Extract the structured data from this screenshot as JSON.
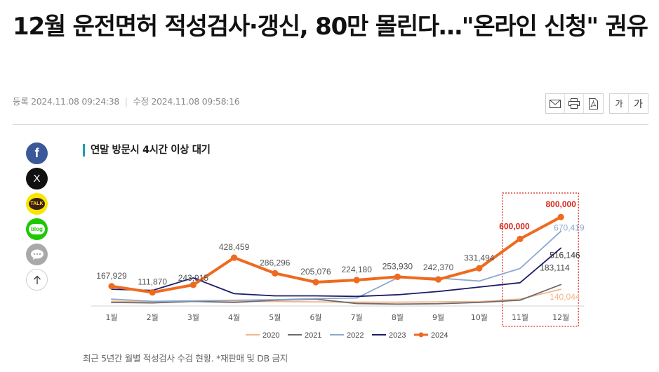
{
  "article": {
    "headline": "12월 운전면허 적성검사·갱신, 80만 몰린다…\"온라인 신청\" 권유",
    "registered_label": "등록",
    "registered_time": "2024.11.08 09:24:38",
    "modified_label": "수정",
    "modified_time": "2024.11.08 09:58:16"
  },
  "toolbar": {
    "email_icon": "envelope-icon",
    "print_icon": "printer-icon",
    "pdf_icon": "pdf-icon",
    "font_decrease_label": "가",
    "font_increase_label": "가"
  },
  "share": {
    "facebook_label": "f",
    "x_label": "X",
    "kakao_label": "TALK",
    "blog_label": "blog",
    "colors": {
      "facebook": "#3b5998",
      "x": "#111111",
      "kakao": "#f7e600",
      "blog": "#1ec800",
      "comment": "#a9a9a9"
    }
  },
  "figure": {
    "caption": "최근 5년간 월별 적성검사 수검 현황. *재판매 및 DB 금지"
  },
  "chart_data": {
    "type": "line",
    "title": "연말 방문시 4시간 이상 대기",
    "categories": [
      "1월",
      "2월",
      "3월",
      "4월",
      "5월",
      "6월",
      "7월",
      "8월",
      "9월",
      "10월",
      "11월",
      "12월"
    ],
    "ylim": [
      0,
      900000
    ],
    "grid": false,
    "legend_position": "bottom",
    "highlight_categories": [
      "11월",
      "12월"
    ],
    "series": [
      {
        "name": "2020",
        "color": "#f5b48a",
        "values": [
          30000,
          25000,
          30000,
          30000,
          28000,
          25000,
          22000,
          22000,
          25000,
          28000,
          50000,
          140044
        ]
      },
      {
        "name": "2021",
        "color": "#6b6b6b",
        "values": [
          20000,
          15000,
          30000,
          20000,
          40000,
          50000,
          10000,
          5000,
          8000,
          20000,
          40000,
          183114
        ]
      },
      {
        "name": "2022",
        "color": "#8da9cf",
        "values": [
          50000,
          30000,
          35000,
          40000,
          45000,
          55000,
          60000,
          245000,
          242370,
          215000,
          330000,
          670419
        ]
      },
      {
        "name": "2023",
        "color": "#1c1c6b",
        "values": [
          140000,
          130000,
          243915,
          100000,
          80000,
          80000,
          75000,
          90000,
          120000,
          160000,
          200000,
          516146
        ]
      },
      {
        "name": "2024",
        "color": "#ee6a1f",
        "values": [
          167929,
          111870,
          180000,
          428459,
          286296,
          205076,
          224180,
          253930,
          230000,
          331494,
          600000,
          800000
        ]
      }
    ],
    "data_labels": [
      {
        "text": "167,929",
        "category": "1월",
        "value": 167929,
        "color": "#555555"
      },
      {
        "text": "111,870",
        "category": "2월",
        "value": 111870,
        "color": "#555555"
      },
      {
        "text": "243,915",
        "category": "3월",
        "value": 243915,
        "color": "#555555"
      },
      {
        "text": "428,459",
        "category": "4월",
        "value": 428459,
        "color": "#555555"
      },
      {
        "text": "286,296",
        "category": "5월",
        "value": 286296,
        "color": "#555555"
      },
      {
        "text": "205,076",
        "category": "6월",
        "value": 205076,
        "color": "#555555"
      },
      {
        "text": "224,180",
        "category": "7월",
        "value": 224180,
        "color": "#555555"
      },
      {
        "text": "253,930",
        "category": "8월",
        "value": 253930,
        "color": "#555555"
      },
      {
        "text": "242,370",
        "category": "9월",
        "value": 242370,
        "color": "#555555"
      },
      {
        "text": "331,494",
        "category": "10월",
        "value": 331494,
        "color": "#555555"
      },
      {
        "text": "600,000",
        "category": "11월",
        "value": 600000,
        "color": "#d9261c"
      },
      {
        "text": "800,000",
        "category": "12월",
        "value": 800000,
        "color": "#d9261c"
      },
      {
        "text": "670,419",
        "category": "12월",
        "value": 670419,
        "color": "#8da9cf"
      },
      {
        "text": "516,146",
        "category": "12월",
        "value": 516146,
        "color": "#333333"
      },
      {
        "text": "183,114",
        "category": "12월",
        "value": 183114,
        "color": "#444444"
      },
      {
        "text": "140,044",
        "category": "12월",
        "value": 140044,
        "color": "#f5b48a"
      }
    ],
    "highlight_color": "#d9261c"
  }
}
